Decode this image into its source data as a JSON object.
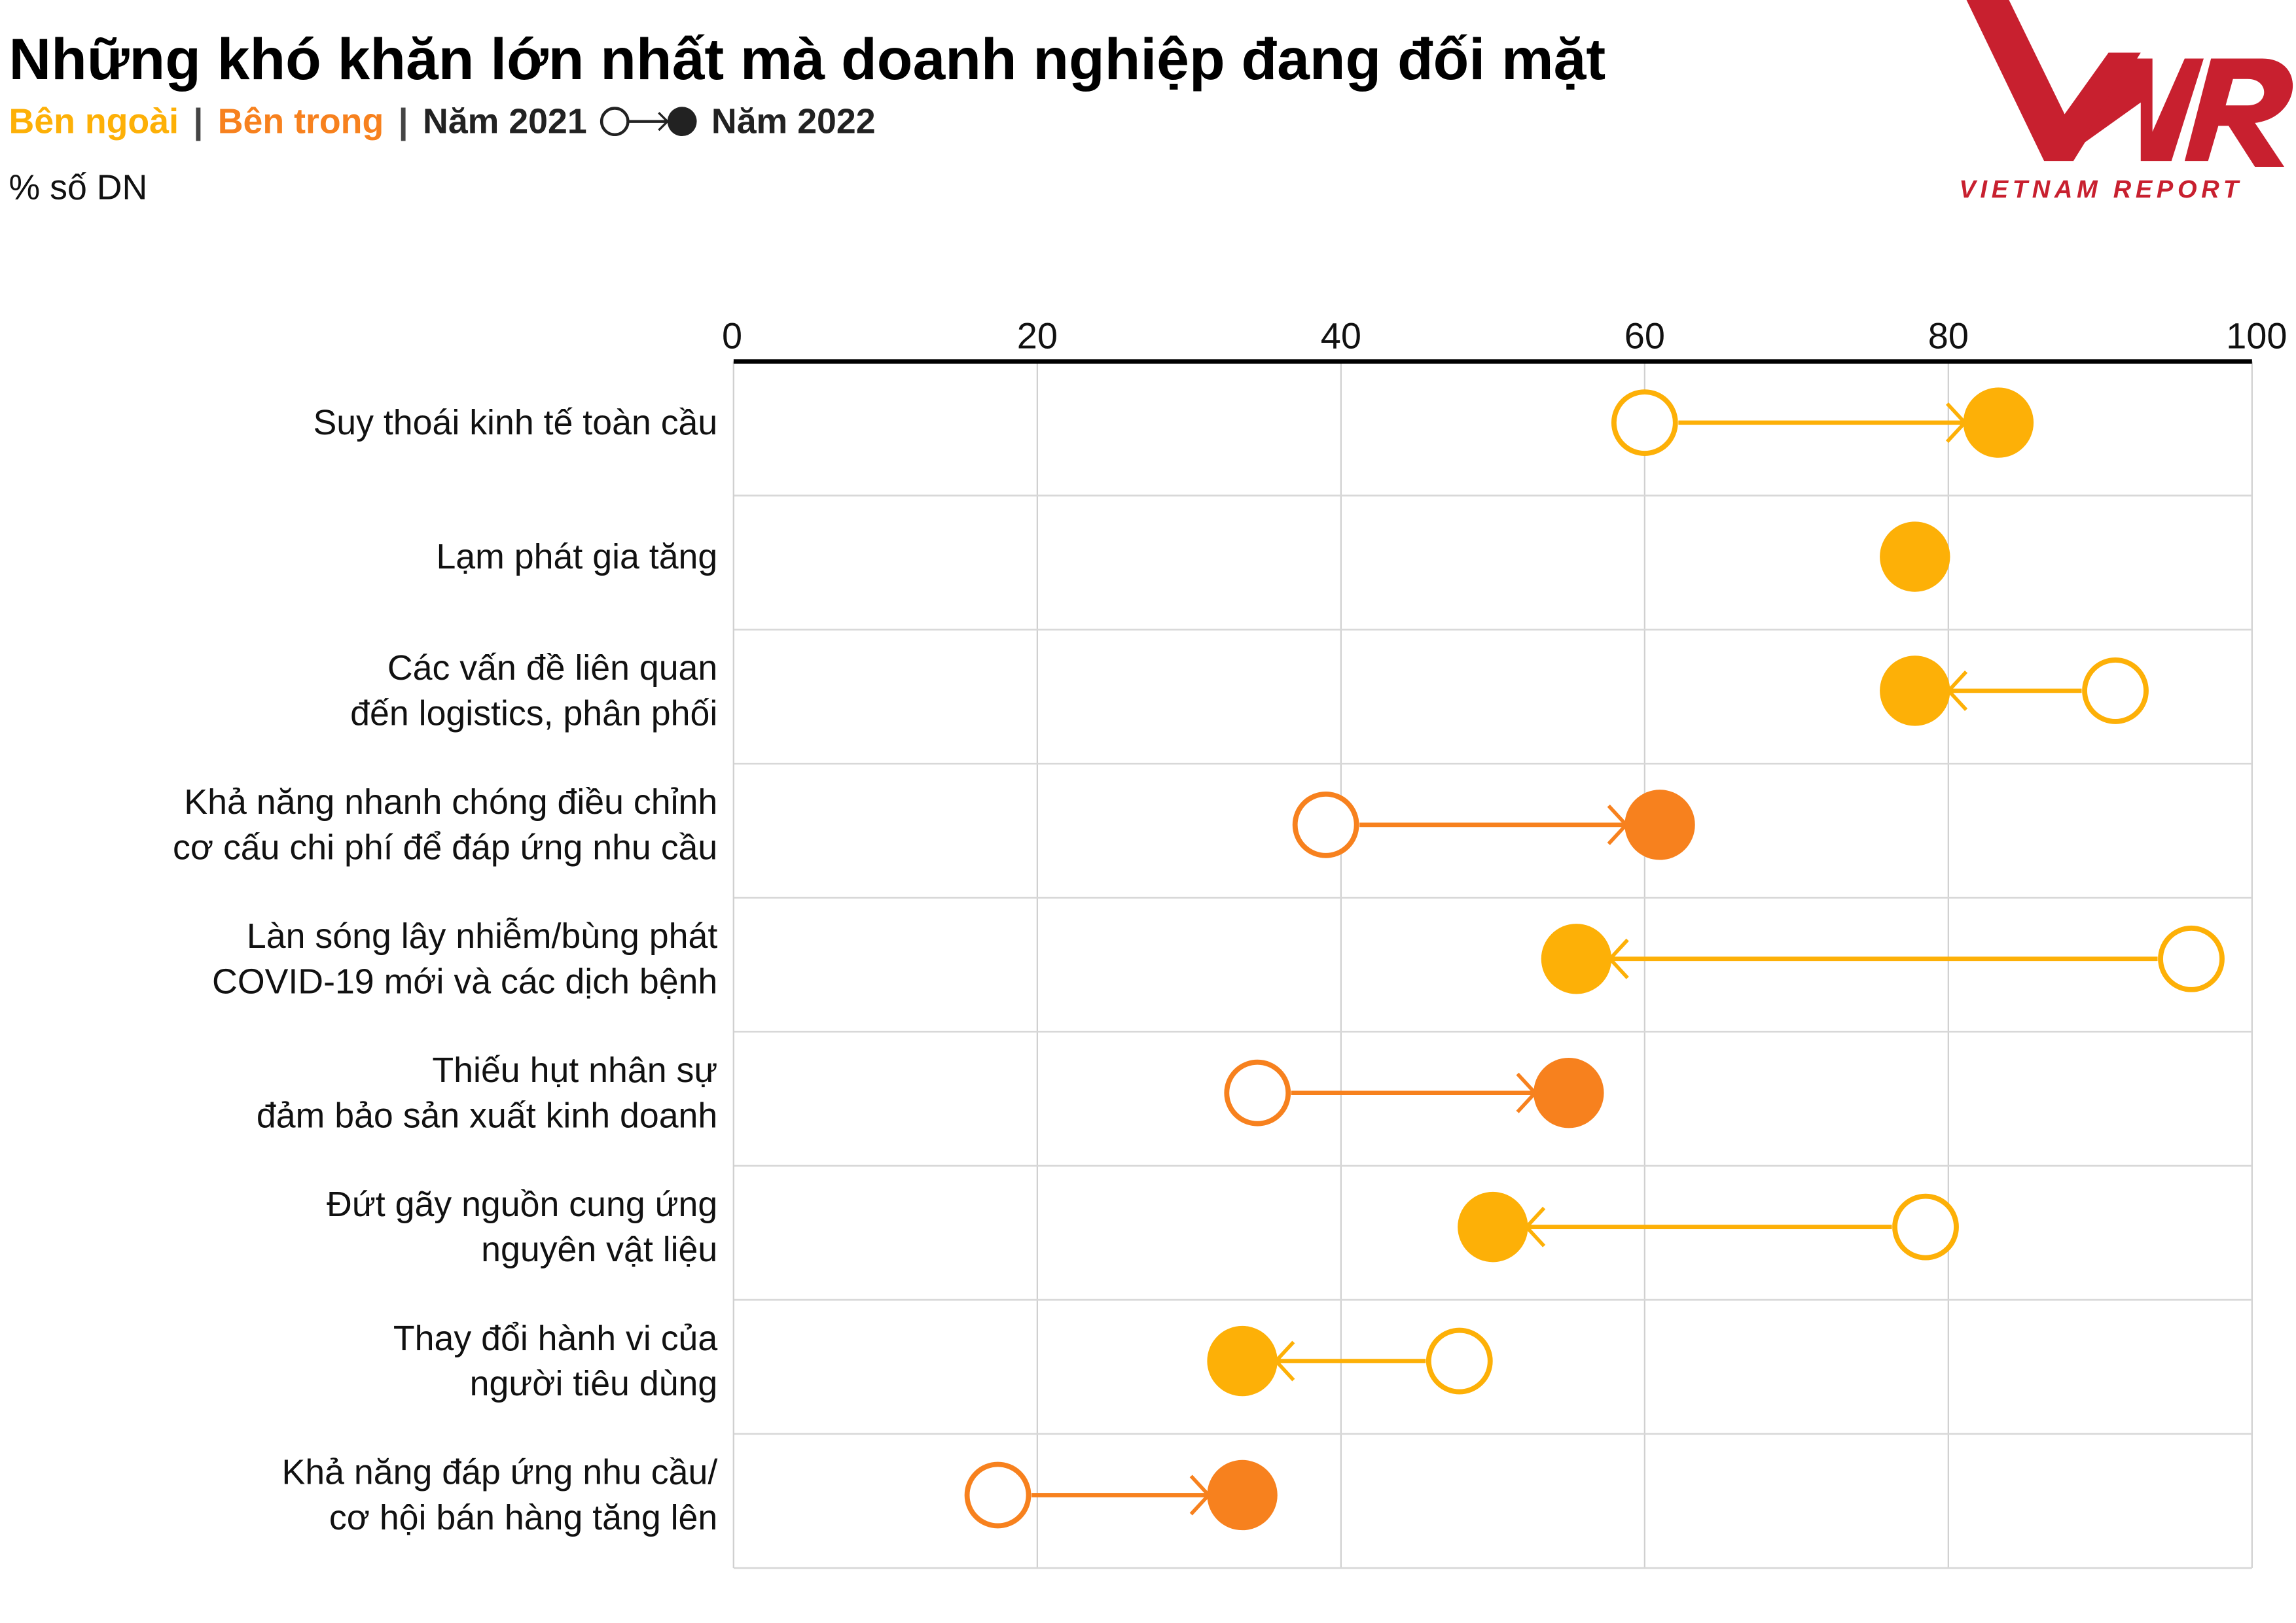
{
  "chart_data": {
    "type": "dumbbell",
    "title": "Những khó khăn lớn nhất mà doanh nghiệp đang đối mặt",
    "legend": {
      "external_label": "Bên ngoài",
      "internal_label": "Bên trong",
      "separator": "|",
      "from_label": "Năm 2021",
      "to_label": "Năm 2022"
    },
    "unit_label": "% số DN",
    "xlim": [
      0,
      100
    ],
    "x_ticks": [
      "0",
      "20",
      "40",
      "60",
      "80",
      "100"
    ],
    "grid": true,
    "colors": {
      "external": "#FDB007",
      "internal": "#F7811E"
    },
    "categories": [
      {
        "lines": [
          "Suy thoái kinh tế toàn cầu"
        ],
        "group": "external",
        "y2021": 60,
        "y2022": 83.3
      },
      {
        "lines": [
          "Lạm phát gia tăng"
        ],
        "group": "external",
        "y2021": null,
        "y2022": 77.8
      },
      {
        "lines": [
          "Các vấn đề liên quan",
          "đến logistics, phân phối"
        ],
        "group": "external",
        "y2021": 91,
        "y2022": 77.8
      },
      {
        "lines": [
          "Khả năng nhanh chóng điều chỉnh",
          "cơ cấu chi phí để đáp ứng nhu cầu"
        ],
        "group": "internal",
        "y2021": 39,
        "y2022": 61
      },
      {
        "lines": [
          "Làn sóng lây nhiễm/bùng phát",
          "COVID-19 mới và các dịch bệnh"
        ],
        "group": "external",
        "y2021": 96,
        "y2022": 55.5
      },
      {
        "lines": [
          "Thiếu hụt nhân sự",
          "đảm bảo sản xuất kinh doanh"
        ],
        "group": "internal",
        "y2021": 34.5,
        "y2022": 55
      },
      {
        "lines": [
          "Đứt gãy nguồn cung ứng",
          "nguyên vật liệu"
        ],
        "group": "external",
        "y2021": 78.5,
        "y2022": 50
      },
      {
        "lines": [
          "Thay đổi hành vi của",
          "người tiêu dùng"
        ],
        "group": "external",
        "y2021": 47.8,
        "y2022": 33.5
      },
      {
        "lines": [
          "Khả năng đáp ứng nhu cầu/",
          "cơ hội bán hàng tăng lên"
        ],
        "group": "internal",
        "y2021": 17.4,
        "y2022": 33.5
      }
    ]
  },
  "logo": {
    "text": "VIETNAM REPORT",
    "letters": "VNR",
    "color": "#C8202F"
  }
}
